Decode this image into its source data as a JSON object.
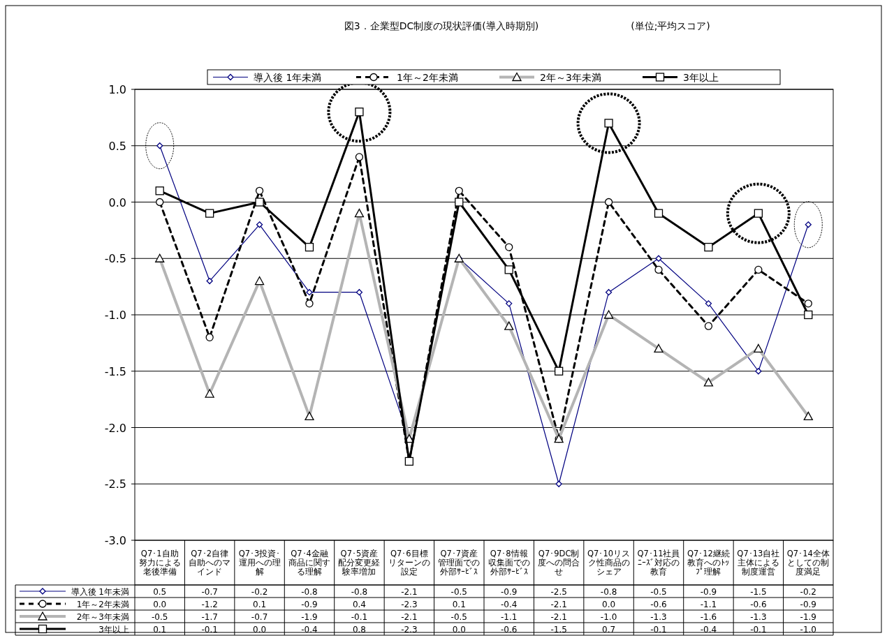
{
  "chart_data": {
    "type": "line",
    "title": "図3．企業型DC制度の現状評価(導入時期別)",
    "subtitle": "(単位;平均スコア)",
    "categories": [
      "Q7･1自助努力による老後準備",
      "Q7･2自律自助へのマインド",
      "Q7･3投資･運用への理解",
      "Q7･4金融商品に関する理解",
      "Q7･5資産配分変更経験率増加",
      "Q7･6目標リターンの設定",
      "Q7･7資産管理面での外部ｻｰﾋﾞｽ",
      "Q7･8情報収集面での外部ｻｰﾋﾞｽ",
      "Q7･9DC制度への問合せ",
      "Q7･10リスク性商品のシェア",
      "Q7･11社員ﾆｰｽﾞ対応の教育",
      "Q7･12継続教育へのﾄｯﾌﾟ理解",
      "Q7･13自社主体による制度運営",
      "Q7･14全体としての制度満足"
    ],
    "series": [
      {
        "name": "導入後  1年未満",
        "color": "#000080",
        "marker": "diamond",
        "line_style": "solid",
        "values": [
          0.5,
          -0.7,
          -0.2,
          -0.8,
          -0.8,
          -2.1,
          -0.5,
          -0.9,
          -2.5,
          -0.8,
          -0.5,
          -0.9,
          -1.5,
          -0.2
        ],
        "value_labels": [
          "0.5",
          "-0.7",
          "-0.2",
          "-0.8",
          "-0.8",
          "-2.1",
          "-0.5",
          "-0.9",
          "-2.5",
          "-0.8",
          "-0.5",
          "-0.9",
          "-1.5",
          "-0.2"
        ]
      },
      {
        "name": "1年～2年未満",
        "color": "#000000",
        "marker": "circle",
        "line_style": "dashed",
        "values": [
          0.0,
          -1.2,
          0.1,
          -0.9,
          0.4,
          -2.3,
          0.1,
          -0.4,
          -2.1,
          0.0,
          -0.6,
          -1.1,
          -0.6,
          -0.9
        ],
        "value_labels": [
          "0.0",
          "-1.2",
          "0.1",
          "-0.9",
          "0.4",
          "-2.3",
          "0.1",
          "-0.4",
          "-2.1",
          "0.0",
          "-0.6",
          "-1.1",
          "-0.6",
          "-0.9"
        ]
      },
      {
        "name": "2年～3年未満",
        "color": "#b4b4b4",
        "marker": "triangle",
        "line_style": "solid",
        "values": [
          -0.5,
          -1.7,
          -0.7,
          -1.9,
          -0.1,
          -2.1,
          -0.5,
          -1.1,
          -2.1,
          -1.0,
          -1.3,
          -1.6,
          -1.3,
          -1.9
        ],
        "value_labels": [
          "-0.5",
          "-1.7",
          "-0.7",
          "-1.9",
          "-0.1",
          "-2.1",
          "-0.5",
          "-1.1",
          "-2.1",
          "-1.0",
          "-1.3",
          "-1.6",
          "-1.3",
          "-1.9"
        ]
      },
      {
        "name": "3年以上",
        "color": "#000000",
        "marker": "square",
        "line_style": "solid",
        "values": [
          0.1,
          -0.1,
          0.0,
          -0.4,
          0.8,
          -2.3,
          0.0,
          -0.6,
          -1.5,
          0.7,
          -0.1,
          -0.4,
          -0.1,
          -1.0
        ],
        "value_labels": [
          "0.1",
          "-0.1",
          "0.0",
          "-0.4",
          "0.8",
          "-2.3",
          "0.0",
          "-0.6",
          "-1.5",
          "0.7",
          "-0.1",
          "-0.4",
          "-0.1",
          "-1.0"
        ]
      }
    ],
    "ylim": [
      -3,
      1
    ],
    "yticks": [
      {
        "value": -3,
        "label": "-3.0"
      },
      {
        "value": -2.5,
        "label": "-2.5"
      },
      {
        "value": -2,
        "label": "-2.0"
      },
      {
        "value": -1.5,
        "label": "-1.5"
      },
      {
        "value": -1,
        "label": "-1.0"
      },
      {
        "value": -0.5,
        "label": "-0.5"
      },
      {
        "value": 0,
        "label": "0.0"
      },
      {
        "value": 0.5,
        "label": "0.5"
      },
      {
        "value": 1,
        "label": "1.0"
      }
    ],
    "grid": "y",
    "legend": "top"
  }
}
